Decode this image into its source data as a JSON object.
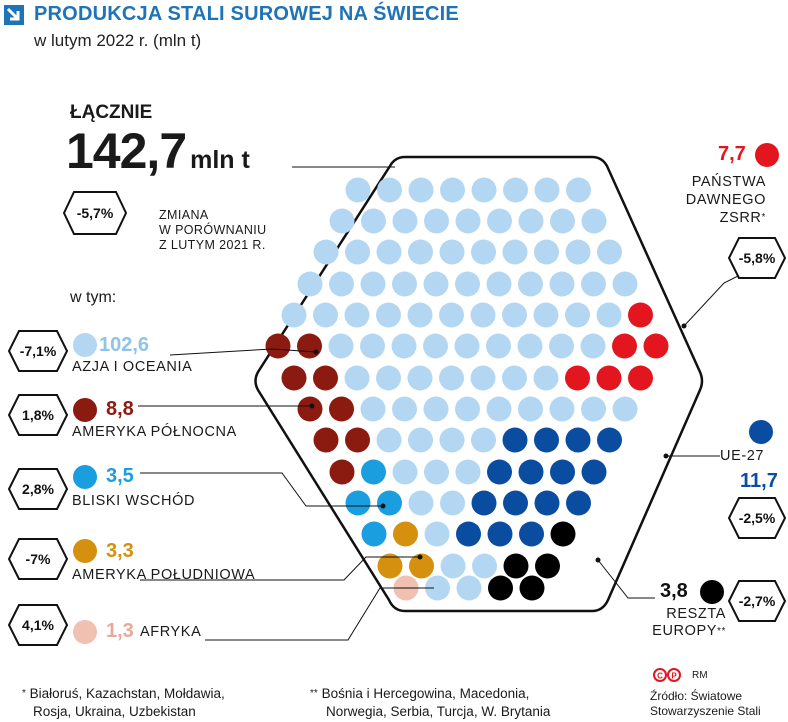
{
  "header": {
    "title": "PRODUKCJA STALI SUROWEJ NA ŚWIECIE",
    "subtitle": "w lutym 2022 r. (mln t)"
  },
  "total": {
    "label": "ŁĄCZNIE",
    "value": "142,7",
    "unit": "mln t",
    "change": "-5,7%",
    "change_note": [
      "ZMIANA",
      "W PORÓWNANIU",
      "Z LUTYM 2021 R."
    ]
  },
  "breakdown_label": "w tym:",
  "chart_data": {
    "type": "unit-hexagon",
    "title": "PRODUKCJA STALI SUROWEJ NA ŚWIECIE",
    "subtitle": "w lutym 2022 r. (mln t)",
    "total": 142.7,
    "total_change_pct": -5.7,
    "series": [
      {
        "name": "AZJA I OCEANIA",
        "value": 102.6,
        "value_label": "102,6",
        "change": "-7,1%",
        "color": "#b3d7f2"
      },
      {
        "name": "AMERYKA PÓŁNOCNA",
        "value": 8.8,
        "value_label": "8,8",
        "change": "1,8%",
        "color": "#8b1a10"
      },
      {
        "name": "BLISKI WSCHÓD",
        "value": 3.5,
        "value_label": "3,5",
        "change": "2,8%",
        "color": "#1a9ee0"
      },
      {
        "name": "AMERYKA POŁUDNIOWA",
        "value": 3.3,
        "value_label": "3,3",
        "change": "-7%",
        "color": "#d4900e"
      },
      {
        "name": "AFRYKA",
        "value": 1.3,
        "value_label": "1,3",
        "change": "4,1%",
        "color": "#f0c0b0"
      },
      {
        "name": "PAŃSTWA DAWNEGO ZSRR*",
        "value": 7.7,
        "value_label": "7,7",
        "change": "-5,8%",
        "color": "#e3151e"
      },
      {
        "name": "UE-27",
        "value": 11.7,
        "value_label": "11,7",
        "change": "-2,5%",
        "color": "#0a4da0"
      },
      {
        "name": "RESZTA EUROPY**",
        "value": 3.8,
        "value_label": "3,8",
        "change": "-2,7%",
        "color": "#000000"
      }
    ]
  },
  "right_labels": {
    "zssr_lines": [
      "PAŃSTWA",
      "DAWNEGO",
      "ZSRR"
    ],
    "ue_name": "UE-27",
    "reszta_lines": [
      "RESZTA",
      "EUROPY"
    ]
  },
  "footnotes": {
    "one_star": [
      "Białoruś, Kazachstan, Mołdawia,",
      "Rosja, Ukraina, Uzbekistan"
    ],
    "two_star": [
      "Bośnia i Hercegowina, Macedonia,",
      "Norwegia, Serbia, Turcja, W. Brytania"
    ],
    "source": [
      "Źródło: Światowe",
      "Stowarzyszenie Stali"
    ],
    "credit": "RM"
  }
}
